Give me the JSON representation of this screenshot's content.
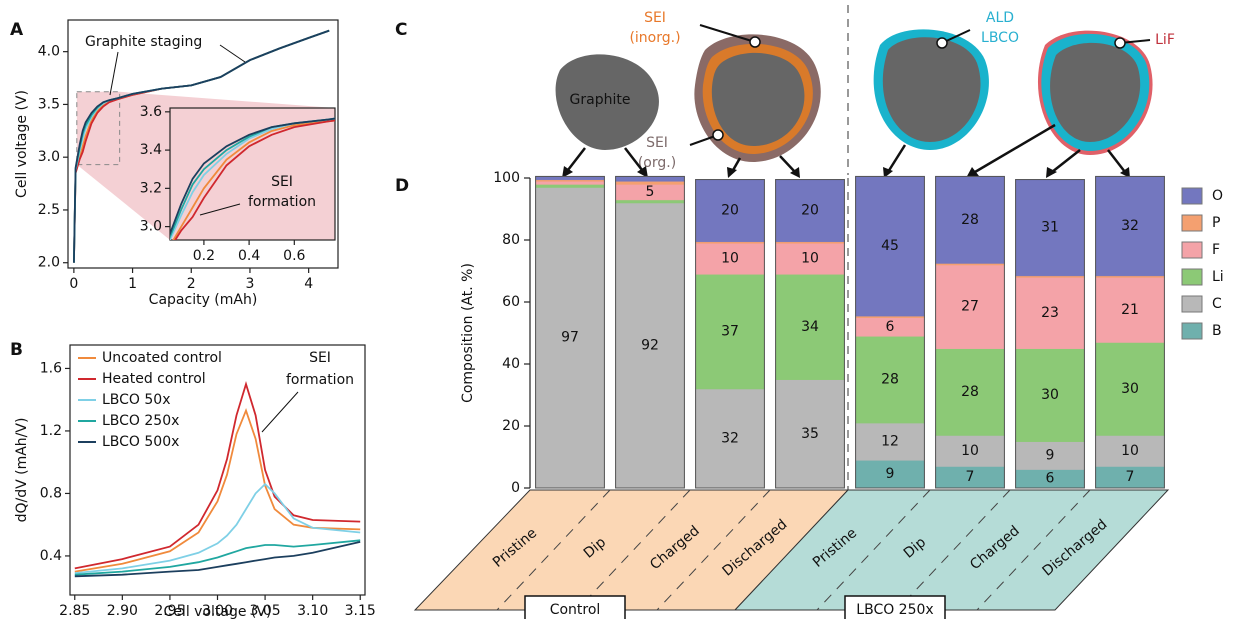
{
  "panel_labels": [
    "A",
    "B",
    "C",
    "D"
  ],
  "diagram": {
    "graphite": "Graphite",
    "sei_inorg": [
      "SEI",
      "(inorg.)"
    ],
    "sei_org": [
      "SEI",
      "(org.)"
    ],
    "ald": [
      "ALD",
      "LBCO"
    ],
    "lif": "LiF"
  },
  "chart_data": [
    {
      "type": "line",
      "xlabel": "Capacity (mAh)",
      "ylabel": "Cell voltage (V)",
      "annotation": "Graphite staging",
      "xlim": [
        -0.1,
        4.5
      ],
      "ylim": [
        1.95,
        4.3
      ],
      "xticks": [
        0,
        1,
        2,
        3,
        4
      ],
      "yticks": [
        {
          "value": 2,
          "label": "2.0"
        },
        2.5,
        {
          "value": 3,
          "label": "3.0"
        },
        3.5,
        {
          "value": 4,
          "label": "4.0"
        }
      ],
      "x": [
        0,
        0.03,
        0.1,
        0.15,
        0.2,
        0.3,
        0.4,
        0.5,
        0.6,
        0.75,
        1.0,
        1.5,
        2.0,
        2.5,
        3.0,
        3.5,
        4.0,
        4.35
      ],
      "series": [
        {
          "color": "#f08a3c",
          "values": [
            2.0,
            2.86,
            3.0,
            3.1,
            3.2,
            3.35,
            3.44,
            3.5,
            3.53,
            3.55,
            3.59,
            3.65,
            3.68,
            3.76,
            3.92,
            4.03,
            4.13,
            4.2
          ]
        },
        {
          "color": "#d0282e",
          "values": [
            2.0,
            2.85,
            2.98,
            3.05,
            3.15,
            3.32,
            3.42,
            3.48,
            3.52,
            3.55,
            3.59,
            3.65,
            3.68,
            3.76,
            3.92,
            4.03,
            4.13,
            4.2
          ]
        },
        {
          "color": "#7fd0e6",
          "values": [
            2.0,
            2.88,
            3.06,
            3.18,
            3.27,
            3.38,
            3.46,
            3.51,
            3.54,
            3.56,
            3.6,
            3.65,
            3.68,
            3.76,
            3.92,
            4.03,
            4.13,
            4.2
          ]
        },
        {
          "color": "#20a7a0",
          "values": [
            2.0,
            2.89,
            3.09,
            3.22,
            3.3,
            3.4,
            3.47,
            3.52,
            3.54,
            3.56,
            3.6,
            3.65,
            3.68,
            3.76,
            3.92,
            4.03,
            4.13,
            4.2
          ]
        },
        {
          "color": "#1c3f5e",
          "values": [
            2.0,
            2.9,
            3.12,
            3.25,
            3.33,
            3.42,
            3.48,
            3.52,
            3.54,
            3.56,
            3.6,
            3.65,
            3.68,
            3.76,
            3.92,
            4.03,
            4.13,
            4.2
          ]
        }
      ],
      "inset": {
        "xlim": [
          0.05,
          0.78
        ],
        "ylim": [
          2.93,
          3.62
        ],
        "xticks": [
          0.2,
          0.4,
          0.6
        ],
        "yticks": [
          {
            "value": 3,
            "label": "3.0"
          },
          3.2,
          3.4,
          3.6
        ],
        "annotation": [
          "SEI",
          "formation"
        ]
      }
    },
    {
      "type": "line",
      "xlabel": "Cell voltage (V)",
      "ylabel": "dQ/dV (mAh/V)",
      "annotation": [
        "SEI",
        "formation"
      ],
      "xlim": [
        2.845,
        3.155
      ],
      "ylim": [
        0.15,
        1.75
      ],
      "xticks": [
        2.85,
        {
          "value": 2.9,
          "label": "2.90"
        },
        2.95,
        {
          "value": 3,
          "label": "3.00"
        },
        3.05,
        {
          "value": 3.1,
          "label": "3.10"
        },
        3.15
      ],
      "yticks": [
        0.4,
        0.8,
        1.2,
        1.6
      ],
      "x": [
        2.85,
        2.9,
        2.95,
        2.98,
        3.0,
        3.01,
        3.02,
        3.03,
        3.04,
        3.05,
        3.06,
        3.08,
        3.1,
        3.15
      ],
      "series": [
        {
          "name": "Uncoated control",
          "color": "#f08a3c",
          "values": [
            0.3,
            0.35,
            0.43,
            0.55,
            0.75,
            0.92,
            1.18,
            1.33,
            1.15,
            0.85,
            0.7,
            0.6,
            0.58,
            0.57
          ]
        },
        {
          "name": "Heated control",
          "color": "#d0282e",
          "values": [
            0.32,
            0.38,
            0.46,
            0.6,
            0.82,
            1.02,
            1.3,
            1.5,
            1.3,
            0.95,
            0.78,
            0.66,
            0.63,
            0.62
          ]
        },
        {
          "name": "LBCO 50x",
          "color": "#7fd0e6",
          "values": [
            0.29,
            0.32,
            0.37,
            0.42,
            0.48,
            0.53,
            0.6,
            0.7,
            0.8,
            0.86,
            0.8,
            0.64,
            0.58,
            0.55
          ]
        },
        {
          "name": "LBCO 250x",
          "color": "#20a7a0",
          "values": [
            0.28,
            0.3,
            0.33,
            0.36,
            0.39,
            0.41,
            0.43,
            0.45,
            0.46,
            0.47,
            0.47,
            0.46,
            0.47,
            0.5
          ]
        },
        {
          "name": "LBCO 500x",
          "color": "#1c3f5e",
          "values": [
            0.27,
            0.28,
            0.3,
            0.31,
            0.33,
            0.34,
            0.35,
            0.36,
            0.37,
            0.38,
            0.39,
            0.4,
            0.42,
            0.49
          ]
        }
      ]
    },
    {
      "type": "bar",
      "stacked": true,
      "ylabel": "Composition (At. %)",
      "ylim": [
        0,
        100
      ],
      "yticks": [
        0,
        20,
        40,
        60,
        80,
        100
      ],
      "categories": [
        "Pristine",
        "Dip",
        "Charged",
        "Discharged",
        "Pristine",
        "Dip",
        "Charged",
        "Discharged"
      ],
      "groups": [
        "Control",
        "LBCO 250x"
      ],
      "series": [
        {
          "name": "O",
          "color": "#7377bf",
          "values": [
            1,
            1.5,
            20,
            20,
            45,
            28,
            31,
            32
          ]
        },
        {
          "name": "P",
          "color": "#f4a070",
          "values": [
            0.5,
            1,
            0.5,
            0.5,
            0.5,
            0.5,
            0.5,
            0.5
          ]
        },
        {
          "name": "F",
          "color": "#f4a3a8",
          "values": [
            1,
            5,
            10,
            10,
            6,
            27,
            23,
            21
          ]
        },
        {
          "name": "Li",
          "color": "#8cc976",
          "values": [
            1,
            1,
            37,
            34,
            28,
            28,
            30,
            30
          ]
        },
        {
          "name": "C",
          "color": "#b8b8b8",
          "values": [
            97,
            92,
            32,
            35,
            12,
            10,
            9,
            10
          ]
        },
        {
          "name": "B",
          "color": "#6fb0ad",
          "values": [
            0,
            0,
            0,
            0,
            9,
            7,
            6,
            7
          ]
        }
      ]
    }
  ]
}
